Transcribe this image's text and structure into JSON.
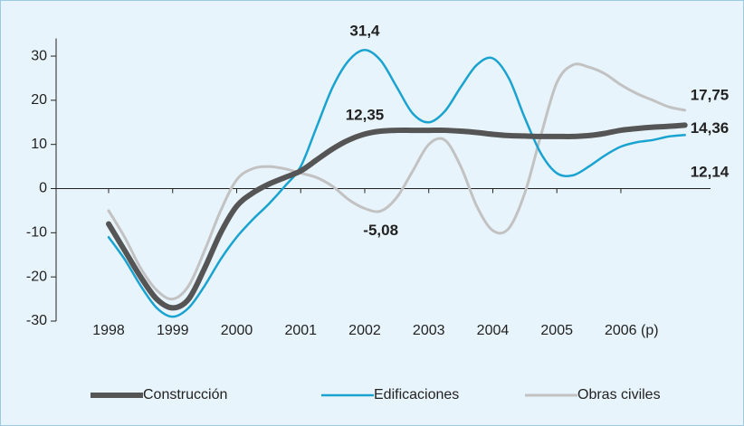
{
  "chart_data": {
    "type": "line",
    "x": [
      1998,
      1998.25,
      1998.5,
      1998.75,
      1999,
      1999.25,
      1999.5,
      1999.75,
      2000,
      2000.25,
      2000.5,
      2000.75,
      2001,
      2001.25,
      2001.5,
      2001.75,
      2002,
      2002.25,
      2002.5,
      2002.75,
      2003,
      2003.25,
      2003.5,
      2003.75,
      2004,
      2004.25,
      2004.5,
      2004.75,
      2005,
      2005.25,
      2005.5,
      2005.75,
      2006,
      2006.25,
      2006.5,
      2006.75,
      2007
    ],
    "series": [
      {
        "name": "Construcción",
        "color": "#555555",
        "values": [
          -8,
          -14,
          -20,
          -25,
          -27,
          -25,
          -18,
          -10,
          -4,
          -1,
          1,
          2.5,
          4,
          6.5,
          9,
          11,
          12.35,
          13,
          13.2,
          13.2,
          13.2,
          13.2,
          13,
          12.7,
          12.3,
          12,
          11.9,
          11.8,
          11.8,
          11.8,
          12,
          12.5,
          13.2,
          13.6,
          13.9,
          14.1,
          14.36
        ],
        "value_labels": [
          null,
          null,
          null,
          null,
          null,
          null,
          null,
          null,
          null,
          null,
          null,
          null,
          null,
          null,
          null,
          null,
          "12,35",
          null,
          null,
          null,
          null,
          null,
          null,
          null,
          null,
          null,
          null,
          null,
          null,
          null,
          null,
          null,
          null,
          null,
          null,
          null,
          "14,36"
        ]
      },
      {
        "name": "Edificaciones",
        "color": "#1aa3d1",
        "values": [
          -11,
          -16,
          -22,
          -27,
          -29,
          -27,
          -22,
          -16,
          -11,
          -7,
          -3.5,
          0.5,
          5,
          14,
          23,
          29,
          31.4,
          29,
          23,
          17,
          15,
          17.5,
          23,
          28,
          29.5,
          25,
          16,
          8,
          3.5,
          3,
          5,
          7.5,
          9.5,
          10.5,
          11,
          11.8,
          12.14
        ],
        "value_labels": [
          null,
          null,
          null,
          null,
          null,
          null,
          null,
          null,
          null,
          null,
          null,
          null,
          null,
          null,
          null,
          null,
          "31,4",
          null,
          null,
          null,
          null,
          null,
          null,
          null,
          null,
          null,
          null,
          null,
          null,
          null,
          null,
          null,
          null,
          null,
          null,
          null,
          "12,14"
        ]
      },
      {
        "name": "Obras civiles",
        "color": "#c2c2c2",
        "values": [
          -5,
          -11,
          -18,
          -23,
          -25,
          -22,
          -14,
          -5,
          2,
          4.5,
          5,
          4.5,
          3.5,
          2.5,
          0.5,
          -2.5,
          -4.5,
          -5.08,
          -2,
          4,
          10,
          11,
          5,
          -4,
          -9.5,
          -9,
          -1,
          12,
          24,
          28,
          27.5,
          26,
          23.5,
          21.5,
          20,
          18.5,
          17.75
        ],
        "value_labels": [
          null,
          null,
          null,
          null,
          null,
          null,
          null,
          null,
          null,
          null,
          null,
          null,
          null,
          null,
          null,
          null,
          null,
          "-5,08",
          null,
          null,
          null,
          null,
          null,
          null,
          null,
          null,
          null,
          null,
          null,
          null,
          null,
          null,
          null,
          null,
          null,
          null,
          "17,75"
        ]
      }
    ],
    "xlim": [
      1997.18,
      2007.4
    ],
    "xticks": [
      1998,
      1999,
      2000,
      2001,
      2002,
      2003,
      2004,
      2005,
      {
        "value": 2006,
        "label": "2006 (p)"
      }
    ],
    "ylim": [
      -30,
      34
    ],
    "yticks": [
      -30,
      -20,
      -10,
      0,
      10,
      20,
      30
    ],
    "legend": "bottom"
  }
}
